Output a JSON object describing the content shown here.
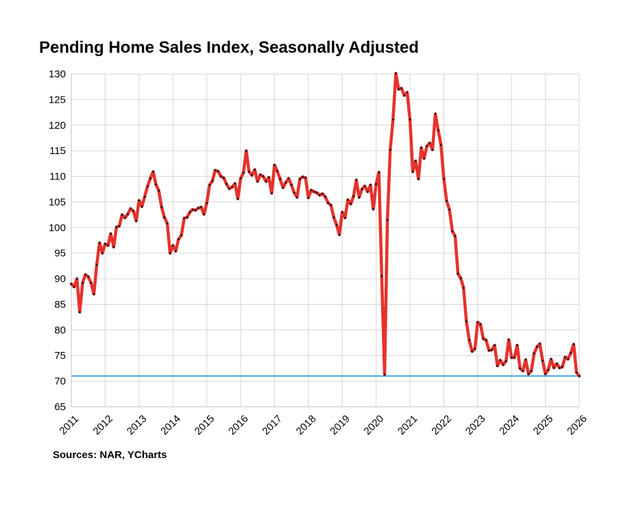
{
  "chart_data": {
    "type": "line",
    "title": "Pending Home Sales Index, Seasonally Adjusted",
    "source": "Sources: NAR, YCharts",
    "xlabel": "",
    "ylabel": "",
    "xlim": [
      2011,
      2026
    ],
    "ylim": [
      65,
      130
    ],
    "y_ticks": [
      130,
      125,
      120,
      115,
      110,
      105,
      100,
      95,
      90,
      85,
      80,
      75,
      70,
      65
    ],
    "x_ticks": [
      "2011",
      "2012",
      "2013",
      "2014",
      "2015",
      "2016",
      "2017",
      "2018",
      "2019",
      "2020",
      "2021",
      "2022",
      "2023",
      "2024",
      "2025",
      "2026"
    ],
    "grid": true,
    "reference_line": 71,
    "series": [
      {
        "name": "Pending Home Sales Index",
        "x": [
          2011.0,
          2011.083,
          2011.167,
          2011.25,
          2011.333,
          2011.417,
          2011.5,
          2011.583,
          2011.667,
          2011.75,
          2011.833,
          2011.917,
          2012.0,
          2012.083,
          2012.167,
          2012.25,
          2012.333,
          2012.417,
          2012.5,
          2012.583,
          2012.667,
          2012.75,
          2012.833,
          2012.917,
          2013.0,
          2013.083,
          2013.167,
          2013.25,
          2013.333,
          2013.417,
          2013.5,
          2013.583,
          2013.667,
          2013.75,
          2013.833,
          2013.917,
          2014.0,
          2014.083,
          2014.167,
          2014.25,
          2014.333,
          2014.417,
          2014.5,
          2014.583,
          2014.667,
          2014.75,
          2014.833,
          2014.917,
          2015.0,
          2015.083,
          2015.167,
          2015.25,
          2015.333,
          2015.417,
          2015.5,
          2015.583,
          2015.667,
          2015.75,
          2015.833,
          2015.917,
          2016.0,
          2016.083,
          2016.167,
          2016.25,
          2016.333,
          2016.417,
          2016.5,
          2016.583,
          2016.667,
          2016.75,
          2016.833,
          2016.917,
          2017.0,
          2017.083,
          2017.167,
          2017.25,
          2017.333,
          2017.417,
          2017.5,
          2017.583,
          2017.667,
          2017.75,
          2017.833,
          2017.917,
          2018.0,
          2018.083,
          2018.167,
          2018.25,
          2018.333,
          2018.417,
          2018.5,
          2018.583,
          2018.667,
          2018.75,
          2018.833,
          2018.917,
          2019.0,
          2019.083,
          2019.167,
          2019.25,
          2019.333,
          2019.417,
          2019.5,
          2019.583,
          2019.667,
          2019.75,
          2019.833,
          2019.917,
          2020.0,
          2020.083,
          2020.167,
          2020.25,
          2020.333,
          2020.417,
          2020.5,
          2020.583,
          2020.667,
          2020.75,
          2020.833,
          2020.917,
          2021.0,
          2021.083,
          2021.167,
          2021.25,
          2021.333,
          2021.417,
          2021.5,
          2021.583,
          2021.667,
          2021.75,
          2021.833,
          2021.917,
          2022.0,
          2022.083,
          2022.167,
          2022.25,
          2022.333,
          2022.417,
          2022.5,
          2022.583,
          2022.667,
          2022.75,
          2022.833,
          2022.917,
          2023.0,
          2023.083,
          2023.167,
          2023.25,
          2023.333,
          2023.417,
          2023.5,
          2023.583,
          2023.667,
          2023.75,
          2023.833,
          2023.917,
          2024.0,
          2024.083,
          2024.167,
          2024.25,
          2024.333,
          2024.417,
          2024.5,
          2024.583,
          2024.667,
          2024.75,
          2024.833,
          2024.917,
          2025.0,
          2025.083,
          2025.167,
          2025.25,
          2025.333,
          2025.417,
          2025.5,
          2025.583,
          2025.667,
          2025.75,
          2025.833,
          2025.917,
          2026.0
        ],
        "values": [
          89.0,
          88.4,
          90.0,
          83.5,
          89.2,
          90.8,
          90.4,
          89.2,
          87.0,
          92.7,
          97.0,
          95.0,
          96.8,
          96.5,
          98.8,
          96.2,
          100.1,
          100.3,
          102.5,
          101.9,
          102.6,
          103.7,
          103.2,
          101.3,
          105.3,
          104.1,
          106.0,
          108.0,
          109.6,
          110.9,
          108.4,
          107.2,
          104.0,
          102.0,
          100.8,
          95.0,
          96.5,
          95.4,
          97.7,
          98.5,
          101.8,
          102.0,
          103.0,
          103.5,
          103.4,
          103.8,
          104.0,
          102.6,
          104.8,
          108.3,
          109.1,
          111.2,
          111.0,
          110.0,
          109.7,
          108.5,
          107.6,
          107.9,
          108.6,
          105.6,
          109.6,
          110.7,
          115.0,
          110.9,
          110.2,
          111.3,
          109.0,
          110.3,
          110.0,
          109.0,
          109.8,
          106.7,
          112.2,
          111.0,
          109.5,
          107.8,
          108.8,
          109.6,
          108.3,
          106.8,
          105.9,
          109.5,
          109.9,
          109.7,
          105.8,
          107.3,
          107.0,
          106.8,
          106.3,
          106.6,
          106.0,
          104.8,
          104.4,
          102.0,
          100.5,
          98.6,
          103.0,
          101.9,
          105.4,
          104.6,
          106.1,
          109.3,
          105.9,
          107.5,
          108.1,
          107.0,
          108.3,
          103.6,
          108.5,
          110.8,
          90.5,
          71.3,
          101.5,
          115.2,
          121.1,
          130.1,
          127.0,
          127.2,
          125.8,
          126.4,
          121.1,
          110.9,
          113.0,
          109.5,
          115.6,
          113.5,
          115.9,
          116.5,
          115.2,
          122.2,
          119.0,
          116.1,
          109.5,
          105.2,
          103.5,
          99.3,
          98.3,
          91.0,
          90.1,
          88.2,
          81.7,
          78.0,
          75.8,
          76.3,
          81.5,
          81.1,
          78.3,
          78.0,
          76.0,
          76.1,
          77.0,
          73.0,
          74.1,
          73.2,
          73.9,
          78.1,
          74.6,
          74.6,
          77.0,
          72.5,
          72.0,
          74.2,
          71.4,
          72.0,
          75.4,
          76.7,
          77.3,
          74.0,
          71.4,
          72.2,
          74.3,
          72.6,
          73.4,
          72.6,
          72.8,
          74.7,
          74.3,
          75.5,
          77.2,
          71.7,
          71.0
        ]
      }
    ]
  }
}
